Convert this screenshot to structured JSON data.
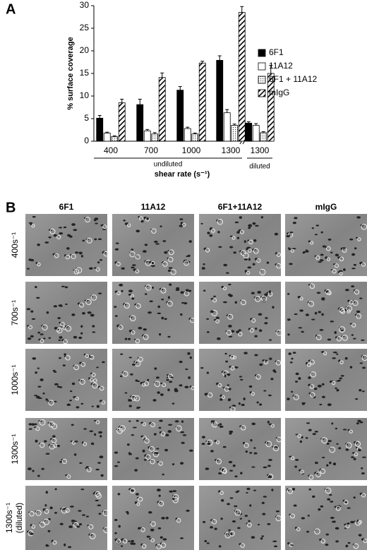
{
  "chart_data": {
    "type": "bar",
    "panel": "A",
    "y_label": "% surface coverage",
    "x_label": "shear rate (s⁻¹)",
    "categories": [
      "400",
      "700",
      "1000",
      "1300",
      "1300"
    ],
    "x_groups": [
      "undiluted",
      "diluted"
    ],
    "ylim": [
      0,
      30
    ],
    "yticks": [
      0,
      5,
      10,
      15,
      20,
      25,
      30
    ],
    "series": [
      {
        "name": "6F1",
        "color": "#000000",
        "pattern": "solid",
        "values": [
          5.1,
          8.1,
          11.3,
          17.9,
          4.0
        ],
        "errors": [
          0.6,
          1.2,
          0.8,
          1.0,
          0.3
        ]
      },
      {
        "name": "11A12",
        "color": "#ffffff",
        "pattern": "solid",
        "values": [
          1.8,
          2.3,
          2.8,
          6.3,
          3.5
        ],
        "errors": [
          0.2,
          0.3,
          0.3,
          0.7,
          0.4
        ]
      },
      {
        "name": "6F1 + 11A12",
        "color": "#ffffff",
        "pattern": "dots",
        "values": [
          1.0,
          1.6,
          1.6,
          3.5,
          1.9
        ],
        "errors": [
          0.2,
          0.3,
          0.2,
          0.3,
          0.2
        ]
      },
      {
        "name": "mIgG",
        "color": "#ffffff",
        "pattern": "hatch",
        "values": [
          8.5,
          14.1,
          17.3,
          28.5,
          15.0
        ],
        "errors": [
          0.8,
          1.0,
          0.4,
          1.3,
          1.8
        ]
      }
    ]
  },
  "micrographs": {
    "panel": "B",
    "columns": [
      "6F1",
      "11A12",
      "6F1+11A12",
      "mIgG"
    ],
    "rows": [
      {
        "label": "400s⁻¹"
      },
      {
        "label": "700s⁻¹"
      },
      {
        "label": "1000s⁻¹"
      },
      {
        "label": "1300s⁻¹"
      },
      {
        "label": "1300s⁻¹",
        "note": "(diluted)"
      }
    ]
  }
}
